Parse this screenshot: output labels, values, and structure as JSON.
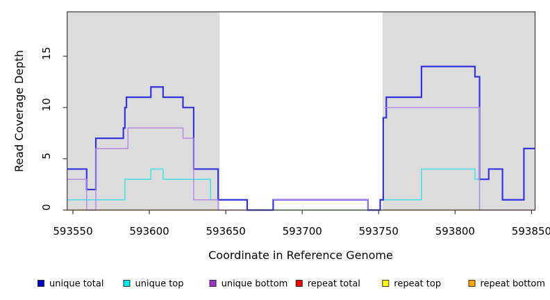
{
  "chart_data": {
    "type": "line",
    "title": "",
    "xlabel": "Coordinate in Reference Genome",
    "ylabel": "Read Coverage Depth",
    "xlim": [
      593546,
      593852
    ],
    "ylim": [
      0,
      19.3
    ],
    "x_ticks": [
      "593550",
      "593600",
      "593650",
      "593700",
      "593750",
      "593800",
      "593850"
    ],
    "x_tick_values": [
      593550,
      593600,
      593650,
      593700,
      593750,
      593800,
      593850
    ],
    "y_ticks": [
      "0",
      "5",
      "10",
      "15"
    ],
    "y_tick_values": [
      0,
      5,
      10,
      15
    ],
    "grid": "off",
    "legend_position": "bottom",
    "plot_bg": "#ffffff",
    "shaded_region_color": "#dcdcdc",
    "shaded_regions": [
      {
        "name": "repeat-region-left",
        "x1": 593546,
        "x2": 593646
      },
      {
        "name": "repeat-region-right",
        "x1": 593752.6,
        "x2": 593852.3
      }
    ],
    "zero_segments": [
      {
        "color": "#9cd49c",
        "x1": 593664,
        "x2": 593743
      },
      {
        "color": "#e87fa8",
        "x1": 593645,
        "x2": 593664
      },
      {
        "color": "#e87fa8",
        "x1": 593815.6,
        "x2": 593852.3
      },
      {
        "color": "#ffa500",
        "x1": 593546,
        "x2": 593645.8
      },
      {
        "color": "#ffa500",
        "x1": 593752.6,
        "x2": 593815.6
      }
    ],
    "series": [
      {
        "name": "unique top",
        "color": "#4fdde8",
        "width": 1.6,
        "runs": [
          {
            "points": [
              [
                593546,
                1
              ],
              [
                593584,
                3
              ],
              [
                593601,
                4
              ],
              [
                593609,
                3
              ],
              [
                593640,
                1
              ],
              [
                593664,
                0
              ]
            ],
            "end": 593664
          },
          {
            "points": [
              [
                593753,
                1
              ],
              [
                593778,
                4
              ],
              [
                593813,
                3
              ],
              [
                593816,
                0
              ]
            ],
            "end": 593816
          }
        ]
      },
      {
        "name": "unique total",
        "color": "#3333e0",
        "width": 2.2,
        "runs": [
          {
            "points": [
              [
                593546,
                4
              ],
              [
                593559,
                2
              ],
              [
                593565,
                7
              ],
              [
                593583,
                8
              ],
              [
                593584,
                10
              ],
              [
                593585,
                11
              ],
              [
                593601,
                12
              ],
              [
                593609,
                11
              ],
              [
                593622,
                10
              ],
              [
                593629,
                4
              ],
              [
                593645,
                1
              ],
              [
                593664,
                0
              ],
              [
                593681,
                1
              ],
              [
                593743,
                0
              ],
              [
                593751,
                1
              ],
              [
                593753,
                9
              ],
              [
                593755,
                11
              ],
              [
                593778,
                14
              ],
              [
                593813,
                13
              ],
              [
                593816,
                3
              ],
              [
                593822,
                4
              ],
              [
                593831,
                1
              ],
              [
                593845,
                6
              ]
            ],
            "end": 593852.3
          }
        ]
      },
      {
        "name": "unique bottom",
        "color": "#b784e8",
        "width": 1.4,
        "runs": [
          {
            "points": [
              [
                593546,
                3
              ],
              [
                593559,
                0
              ],
              [
                593565,
                6
              ],
              [
                593586,
                8
              ],
              [
                593622,
                7
              ],
              [
                593629,
                1
              ],
              [
                593645,
                0
              ]
            ],
            "end": 593646
          },
          {
            "points": [
              [
                593681,
                1
              ],
              [
                593743,
                0
              ]
            ],
            "end": 593743
          },
          {
            "points": [
              [
                593754,
                10
              ],
              [
                593816,
                0
              ]
            ],
            "end": 593816
          }
        ]
      },
      {
        "name": "repeat total",
        "color": "#ee0000",
        "width": 1.5,
        "runs": []
      },
      {
        "name": "repeat top",
        "color": "#ffff00",
        "width": 1.5,
        "runs": []
      },
      {
        "name": "repeat bottom",
        "color": "#ffa500",
        "width": 1.8,
        "runs": []
      }
    ],
    "legend": [
      {
        "label": "unique total",
        "color": "#0000cd"
      },
      {
        "label": "unique top",
        "color": "#00e5ee"
      },
      {
        "label": "unique bottom",
        "color": "#9932cc"
      },
      {
        "label": "repeat total",
        "color": "#ee0000"
      },
      {
        "label": "repeat top",
        "color": "#ffff00"
      },
      {
        "label": "repeat bottom",
        "color": "#ffa500"
      }
    ]
  }
}
